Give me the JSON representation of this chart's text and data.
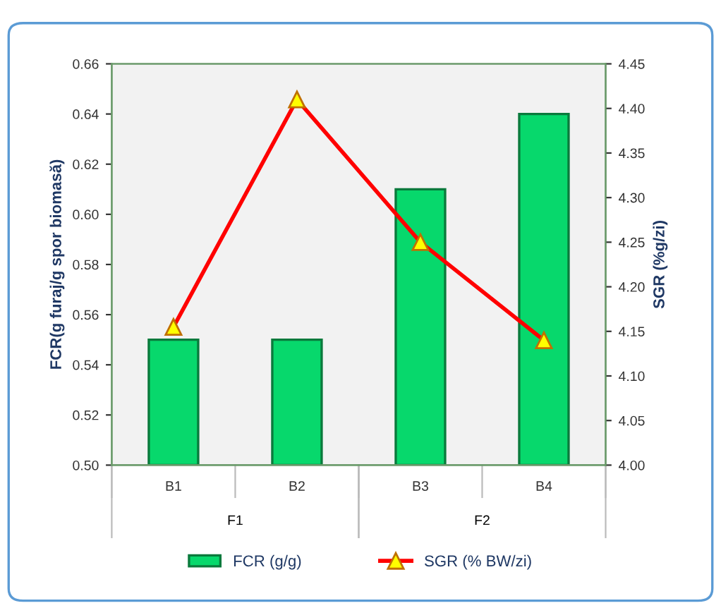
{
  "chart_data": {
    "type": "bar",
    "ylabel": "FCR(g furaj/g spor biomasă)",
    "y2label": "SGR (%g/zi)",
    "categories": [
      "B1",
      "B2",
      "B3",
      "B4"
    ],
    "series": [
      {
        "name": "FCR (g/g)",
        "color": "#07d86c",
        "values": [
          0.55,
          0.55,
          0.61,
          0.64
        ]
      },
      {
        "name": "SGR (% BW/zi)",
        "type": "line",
        "axis": "y2",
        "color": "#ff0000",
        "marker": "triangle",
        "values": [
          4.155,
          4.41,
          4.25,
          4.14
        ]
      }
    ],
    "ylim": [
      0.5,
      0.66
    ],
    "yticks": [
      {
        "value": 0.5,
        "label": "0.50"
      },
      0.52,
      0.54,
      0.56,
      0.58,
      {
        "value": 0.6,
        "label": "0.60"
      },
      0.62,
      0.64,
      0.66
    ],
    "y2lim": [
      4.0,
      4.45
    ],
    "y2ticks": [
      {
        "value": 4.0,
        "label": "4.00"
      },
      4.05,
      {
        "value": 4.1,
        "label": "4.10"
      },
      4.15,
      {
        "value": 4.2,
        "label": "4.20"
      },
      4.25,
      {
        "value": 4.3,
        "label": "4.30"
      },
      4.35,
      {
        "value": 4.4,
        "label": "4.40"
      },
      4.45
    ],
    "annotations": [
      "F1",
      "F2"
    ],
    "legend": "bottom",
    "grid": false
  }
}
